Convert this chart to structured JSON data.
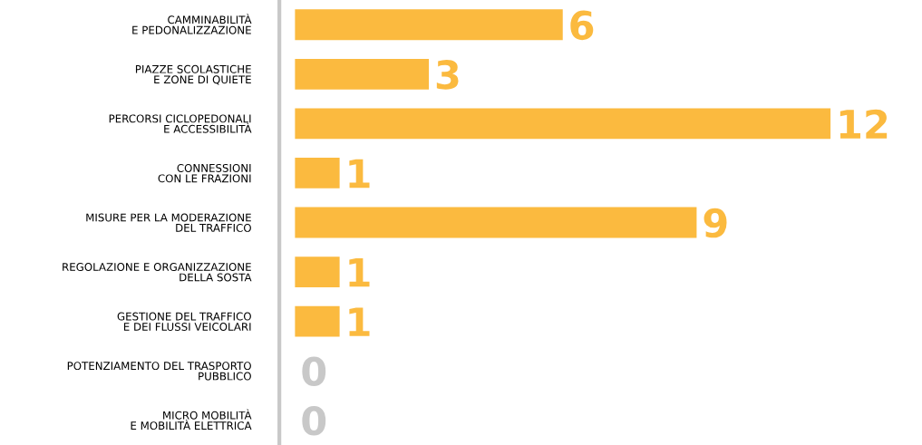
{
  "chart_data": {
    "type": "bar",
    "orientation": "horizontal",
    "categories": [
      "CAMMINABILITÀ\nE PEDONALIZZAZIONE",
      "PIAZZE SCOLASTICHE\nE ZONE DI QUIETE",
      "PERCORSI CICLOPEDONALI\nE ACCESSIBILITÀ",
      "CONNESSIONI\nCON LE FRAZIONI",
      "MISURE PER LA MODERAZIONE\nDEL TRAFFICO",
      "REGOLAZIONE E ORGANIZZAZIONE\nDELLA SOSTA",
      "GESTIONE DEL TRAFFICO\nE DEI FLUSSI VEICOLARI",
      "POTENZIAMENTO DEL TRASPORTO\nPUBBLICO",
      "MICRO MOBILITÀ\nE MOBILITÀ ELETTRICA"
    ],
    "values": [
      6,
      3,
      12,
      1,
      9,
      1,
      1,
      0,
      0
    ],
    "colors": [
      "#fbba3f",
      "#fbba3f",
      "#fbba3f",
      "#fbba3f",
      "#fbba3f",
      "#fbba3f",
      "#fbba3f",
      "#c8c8c8",
      "#c8c8c8"
    ],
    "data_labels": true,
    "grid": false,
    "legend": false
  }
}
